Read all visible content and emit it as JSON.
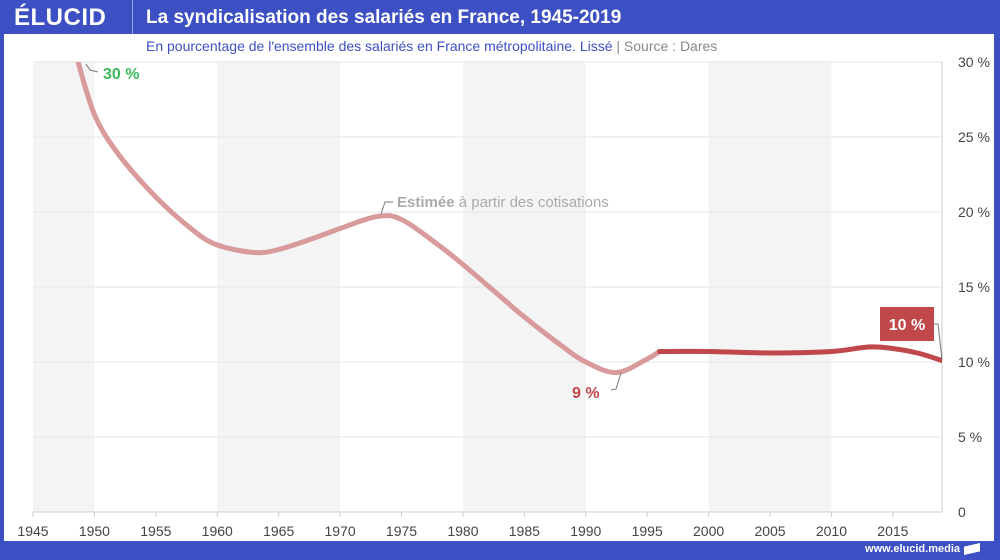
{
  "header": {
    "logo": "ÉLUCID",
    "title": "La syndicalisation des salariés en France, 1945-2019"
  },
  "subtitle": {
    "text": "En pourcentage de l'ensemble des salariés en France métropolitaine. Lissé",
    "sep": " | ",
    "source": "Source : Dares"
  },
  "footer": {
    "url": "www.elucid.media"
  },
  "colors": {
    "brand": "#3d50c3",
    "estimated": "#d89a9a",
    "measured": "#c0474a",
    "green": "#3cb95a"
  },
  "chart_data": {
    "type": "line",
    "xlim": [
      1945,
      2019
    ],
    "ylim": [
      0,
      30
    ],
    "x_ticks": [
      "1945",
      "1950",
      "1955",
      "1960",
      "1965",
      "1970",
      "1975",
      "1980",
      "1985",
      "1990",
      "1995",
      "2000",
      "2005",
      "2010",
      "2015"
    ],
    "y_ticks": [
      "0",
      "5 %",
      "10 %",
      "15 %",
      "20 %",
      "25 %",
      "30 %"
    ],
    "grid": true,
    "series": [
      {
        "segment": "estimated",
        "x": [
          1948.5,
          1950,
          1952,
          1955,
          1958,
          1960,
          1963,
          1965,
          1968,
          1970,
          1973,
          1975,
          1978,
          1980,
          1983,
          1985,
          1988,
          1990,
          1992.5,
          1995,
          1996
        ],
        "y": [
          30.5,
          26.5,
          23.8,
          21,
          18.8,
          17.8,
          17.3,
          17.5,
          18.3,
          18.9,
          19.7,
          19.5,
          17.8,
          16.5,
          14.4,
          13,
          11.1,
          10,
          9.3,
          10.2,
          10.7
        ]
      },
      {
        "segment": "measured",
        "x": [
          1996,
          2000,
          2005,
          2010,
          2013,
          2015,
          2017,
          2019
        ],
        "y": [
          10.7,
          10.7,
          10.6,
          10.7,
          11,
          10.9,
          10.6,
          10.1
        ]
      }
    ],
    "annotations": {
      "start": "30 %",
      "estimate_bold": "Estimée",
      "estimate_rest": " à partir des cotisations",
      "min": "9 %",
      "end": "10 %"
    }
  }
}
